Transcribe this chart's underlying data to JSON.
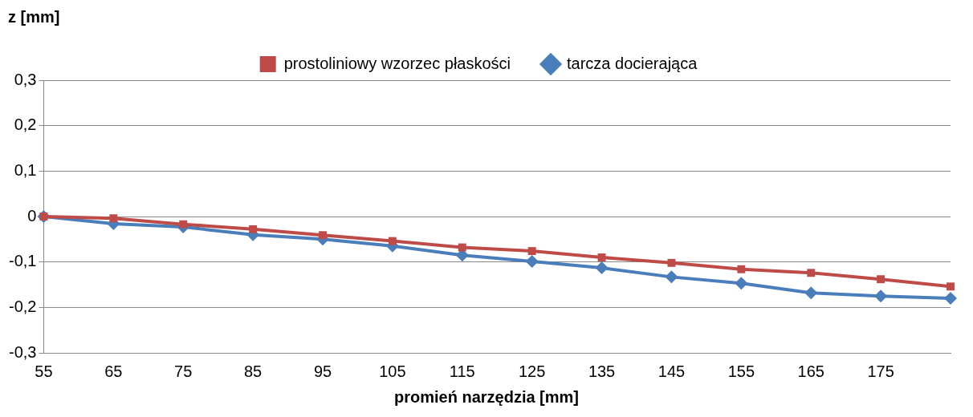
{
  "chart_data": {
    "type": "line",
    "ylabel": "z [mm]",
    "xlabel": "promień narzędzia [mm]",
    "categories": [
      "55",
      "65",
      "75",
      "85",
      "95",
      "105",
      "115",
      "125",
      "135",
      "145",
      "155",
      "165",
      "175",
      null
    ],
    "series": [
      {
        "name": "tarcza docierająca",
        "color": "#4a7ebb",
        "marker": "diamond",
        "values": [
          0,
          -0.016,
          -0.023,
          -0.04,
          -0.05,
          -0.065,
          -0.085,
          -0.099,
          -0.113,
          -0.133,
          -0.147,
          -0.168,
          -0.175,
          -0.18
        ]
      },
      {
        "name": "prostoliniowy wzorzec płaskości",
        "color": "#be4b48",
        "marker": "square",
        "values": [
          0,
          -0.004,
          -0.017,
          -0.028,
          -0.041,
          -0.054,
          -0.068,
          -0.076,
          -0.09,
          -0.102,
          -0.116,
          -0.124,
          -0.138,
          -0.154
        ]
      }
    ],
    "ylim": [
      -0.3,
      0.3
    ],
    "yticks": [
      {
        "value": -0.3,
        "label": "-0,3"
      },
      {
        "value": -0.2,
        "label": "-0,2"
      },
      {
        "value": -0.1,
        "label": "-0,1"
      },
      {
        "value": 0,
        "label": "0"
      },
      {
        "value": 0.1,
        "label": "0,1"
      },
      {
        "value": 0.2,
        "label": "0,2"
      },
      {
        "value": 0.3,
        "label": "0,3"
      }
    ],
    "grid": "y",
    "legend": "top",
    "line_style": "solid"
  }
}
